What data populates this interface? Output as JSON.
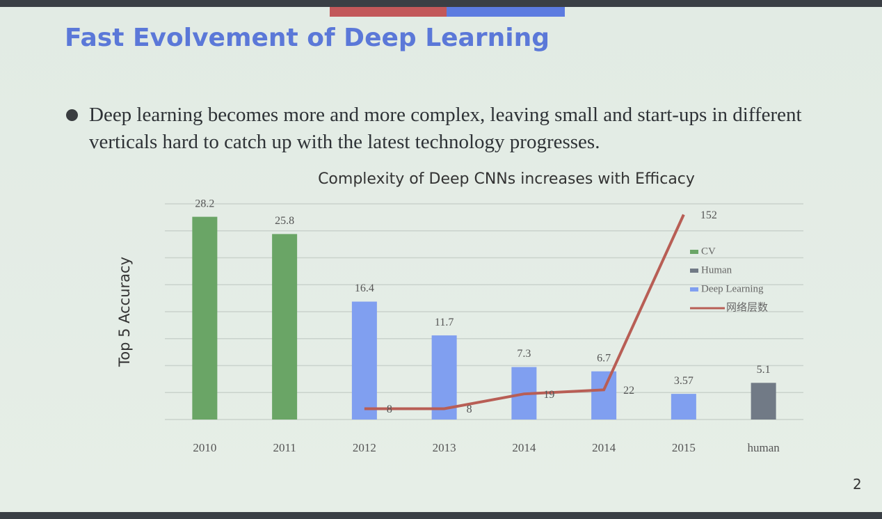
{
  "slide_title": "Fast Evolvement of Deep Learning",
  "bullet": "Deep learning becomes more and more complex, leaving small and start-ups in different verticals hard to catch up with the latest technology progresses.",
  "page_number": "2",
  "chart_data": {
    "type": "bar",
    "title": "Complexity of Deep CNNs increases with Efficacy",
    "y_label": "Top 5 Accuracy",
    "categories": [
      "2010",
      "2011",
      "2012",
      "2013",
      "2014",
      "2014",
      "2015",
      "human"
    ],
    "series": [
      {
        "name": "CV",
        "color": "#6aa566",
        "values": [
          28.2,
          25.8,
          null,
          null,
          null,
          null,
          null,
          null
        ]
      },
      {
        "name": "Human",
        "color": "#717a86",
        "values": [
          null,
          null,
          null,
          null,
          null,
          null,
          null,
          5.1
        ]
      },
      {
        "name": "Deep Learning",
        "color": "#809ff0",
        "values": [
          null,
          null,
          16.4,
          11.7,
          7.3,
          6.7,
          3.57,
          null
        ]
      },
      {
        "name": "网络层数",
        "type": "line",
        "axis": "y2",
        "color": "#b85e55",
        "values": [
          null,
          null,
          8,
          8,
          19,
          22,
          152,
          null
        ]
      }
    ],
    "ylim": [
      0,
      30
    ],
    "yticks": [
      0,
      3.75,
      7.5,
      11.25,
      15,
      18.75,
      22.5,
      26.25,
      30
    ],
    "y2lim": [
      0,
      160
    ],
    "grid": true,
    "legend": "right"
  }
}
